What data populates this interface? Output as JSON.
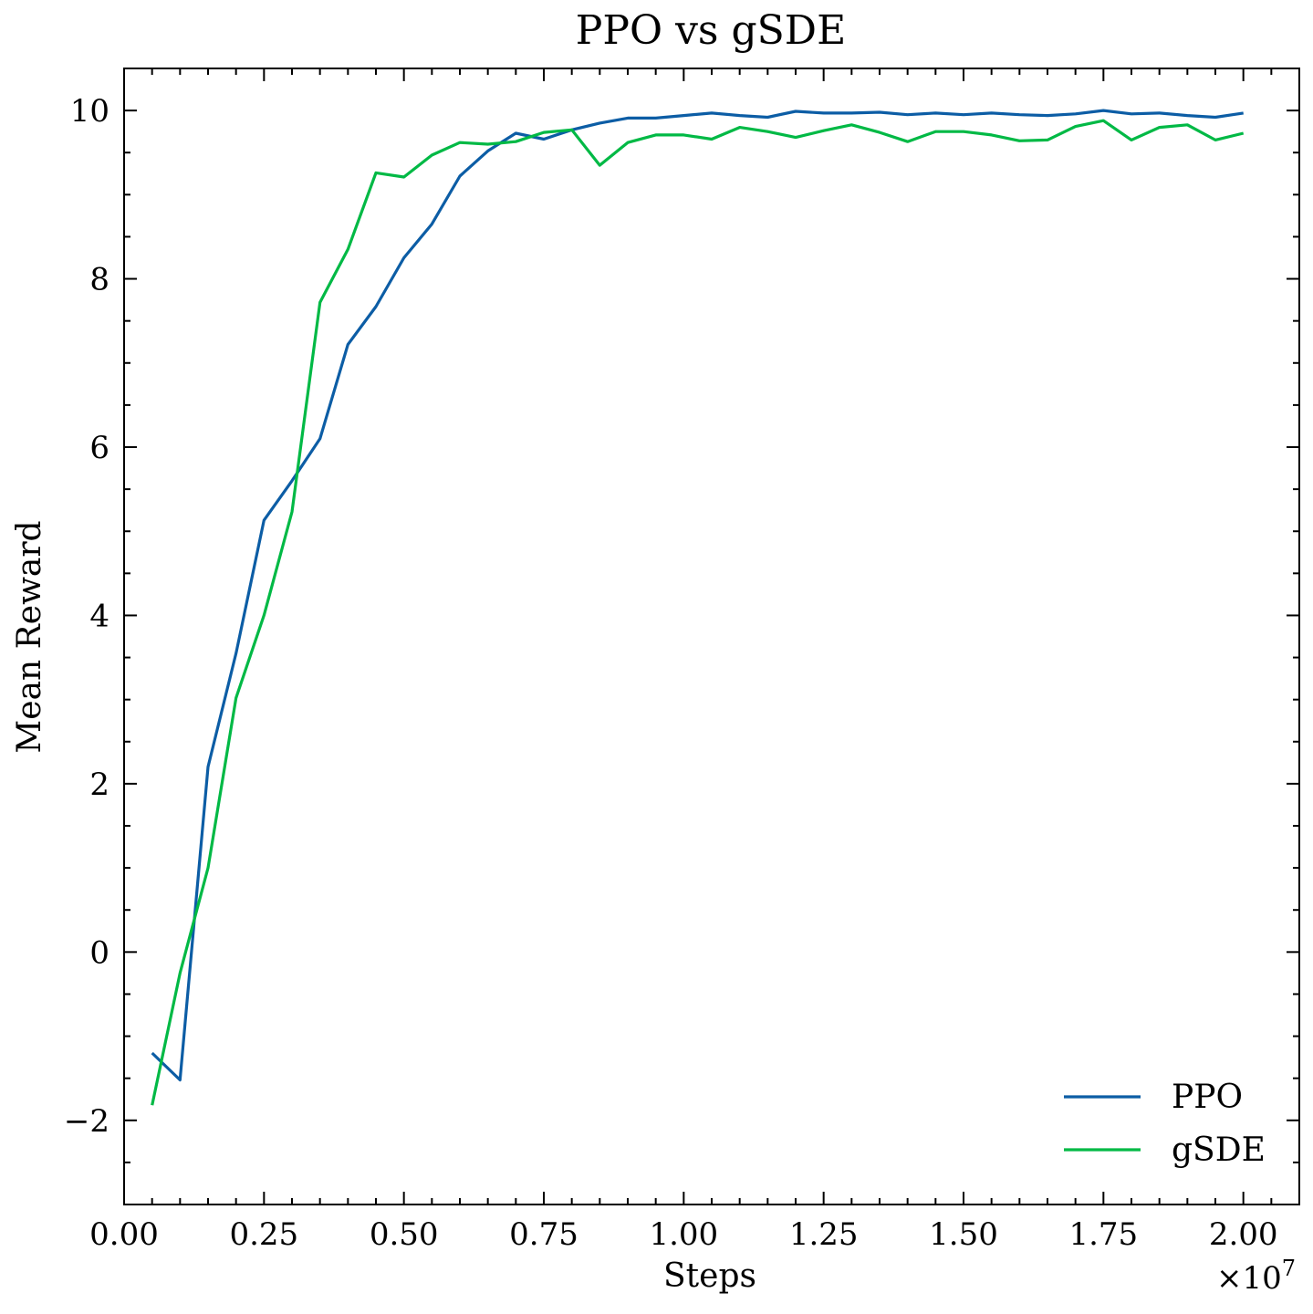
{
  "chart_data": {
    "type": "line",
    "title": "PPO vs gSDE",
    "xlabel": "Steps",
    "ylabel": "Mean Reward",
    "x_offset_label": "×10^7",
    "xlim": [
      0.0,
      2.1
    ],
    "ylim": [
      -3.0,
      10.5
    ],
    "grid": false,
    "legend_position": "lower-right",
    "x_ticks": [
      0.0,
      0.25,
      0.5,
      0.75,
      1.0,
      1.25,
      1.5,
      1.75,
      2.0
    ],
    "x_tick_labels": [
      "0.00",
      "0.25",
      "0.50",
      "0.75",
      "1.00",
      "1.25",
      "1.50",
      "1.75",
      "2.00"
    ],
    "y_ticks": [
      -2,
      0,
      2,
      4,
      6,
      8,
      10
    ],
    "y_tick_labels": [
      "−2",
      "0",
      "2",
      "4",
      "6",
      "8",
      "10"
    ],
    "x_minor_step": 0.05,
    "y_minor_step": 0.5,
    "x": [
      0.05,
      0.1,
      0.15,
      0.2,
      0.25,
      0.3,
      0.35,
      0.4,
      0.45,
      0.5,
      0.55,
      0.6,
      0.65,
      0.7,
      0.75,
      0.8,
      0.85,
      0.9,
      0.95,
      1.0,
      1.05,
      1.1,
      1.15,
      1.2,
      1.25,
      1.3,
      1.35,
      1.4,
      1.45,
      1.5,
      1.55,
      1.6,
      1.65,
      1.7,
      1.75,
      1.8,
      1.85,
      1.9,
      1.95,
      2.0
    ],
    "series": [
      {
        "name": "PPO",
        "color": "#0C5DA5",
        "values": [
          -1.2,
          -1.52,
          2.2,
          3.55,
          5.13,
          5.6,
          6.1,
          7.22,
          7.67,
          8.25,
          8.65,
          9.22,
          9.52,
          9.73,
          9.66,
          9.77,
          9.85,
          9.91,
          9.91,
          9.94,
          9.97,
          9.94,
          9.92,
          9.99,
          9.97,
          9.97,
          9.98,
          9.95,
          9.97,
          9.95,
          9.97,
          9.95,
          9.94,
          9.96,
          10.0,
          9.96,
          9.97,
          9.94,
          9.92,
          9.97
        ]
      },
      {
        "name": "gSDE",
        "color": "#00B945",
        "values": [
          -1.82,
          -0.25,
          1.0,
          3.02,
          4.0,
          5.23,
          7.72,
          8.35,
          9.26,
          9.21,
          9.47,
          9.62,
          9.6,
          9.63,
          9.74,
          9.77,
          9.35,
          9.62,
          9.71,
          9.71,
          9.66,
          9.8,
          9.75,
          9.68,
          9.76,
          9.83,
          9.74,
          9.63,
          9.75,
          9.75,
          9.71,
          9.64,
          9.65,
          9.81,
          9.88,
          9.65,
          9.8,
          9.83,
          9.65,
          9.73
        ]
      }
    ]
  }
}
